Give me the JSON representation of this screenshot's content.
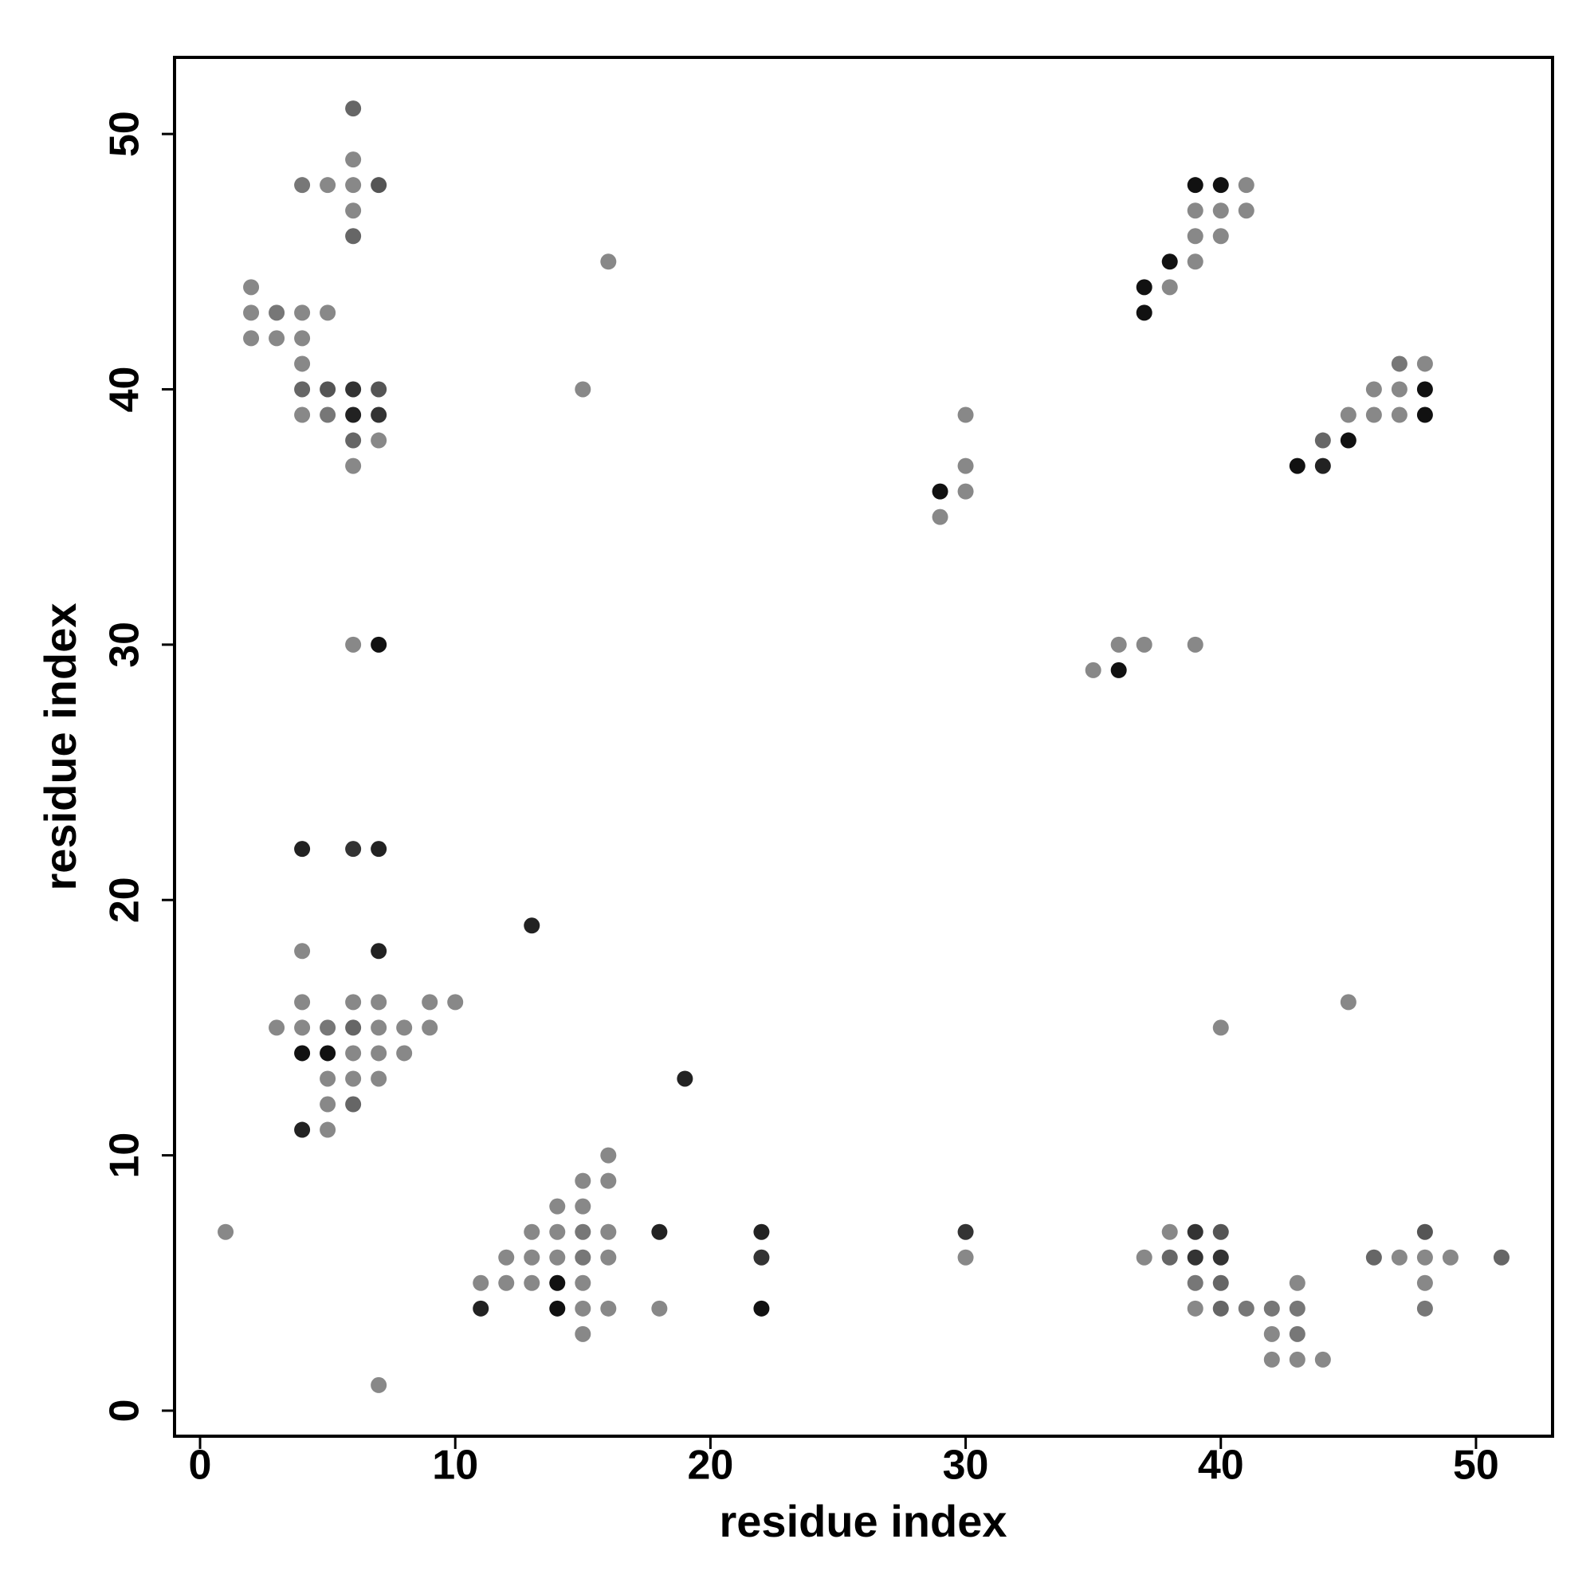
{
  "chart_data": {
    "type": "scatter",
    "x_label": "residue index",
    "y_label": "residue index",
    "xlim": [
      -1,
      53
    ],
    "ylim": [
      -1,
      53
    ],
    "xticks": [
      0,
      10,
      20,
      30,
      40,
      50
    ],
    "yticks": [
      0,
      10,
      20,
      30,
      40,
      50
    ],
    "x": [
      6,
      6,
      4,
      5,
      6,
      7,
      39,
      40,
      41,
      6,
      39,
      40,
      41,
      6,
      39,
      40,
      16,
      38,
      39,
      2,
      37,
      38,
      2,
      3,
      4,
      5,
      37,
      2,
      3,
      4,
      4,
      47,
      48,
      4,
      5,
      6,
      7,
      15,
      46,
      47,
      48,
      4,
      5,
      6,
      7,
      30,
      45,
      46,
      47,
      48,
      6,
      7,
      44,
      45,
      6,
      30,
      43,
      44,
      29,
      30,
      29,
      6,
      7,
      36,
      37,
      39,
      35,
      36,
      4,
      6,
      7,
      13,
      4,
      7,
      4,
      6,
      7,
      9,
      10,
      45,
      3,
      4,
      5,
      6,
      7,
      8,
      9,
      40,
      4,
      5,
      6,
      7,
      8,
      5,
      6,
      7,
      19,
      5,
      6,
      4,
      5,
      16,
      15,
      16,
      14,
      15,
      1,
      13,
      14,
      15,
      16,
      18,
      22,
      30,
      38,
      39,
      40,
      48,
      12,
      13,
      14,
      15,
      16,
      22,
      30,
      37,
      38,
      39,
      40,
      46,
      47,
      48,
      49,
      51,
      11,
      12,
      13,
      14,
      15,
      39,
      40,
      43,
      48,
      11,
      14,
      15,
      16,
      18,
      22,
      39,
      40,
      41,
      42,
      43,
      48,
      15,
      42,
      43,
      42,
      43,
      44,
      7
    ],
    "values": [
      51,
      49,
      48,
      48,
      48,
      48,
      48,
      48,
      48,
      47,
      47,
      47,
      47,
      46,
      46,
      46,
      45,
      45,
      45,
      44,
      44,
      44,
      43,
      43,
      43,
      43,
      43,
      42,
      42,
      42,
      41,
      41,
      41,
      40,
      40,
      40,
      40,
      40,
      40,
      40,
      40,
      39,
      39,
      39,
      39,
      39,
      39,
      39,
      39,
      39,
      38,
      38,
      38,
      38,
      37,
      37,
      37,
      37,
      36,
      36,
      35,
      30,
      30,
      30,
      30,
      30,
      29,
      29,
      22,
      22,
      22,
      19,
      18,
      18,
      16,
      16,
      16,
      16,
      16,
      16,
      15,
      15,
      15,
      15,
      15,
      15,
      15,
      15,
      14,
      14,
      14,
      14,
      14,
      13,
      13,
      13,
      13,
      12,
      12,
      11,
      11,
      10,
      9,
      9,
      8,
      8,
      7,
      7,
      7,
      7,
      7,
      7,
      7,
      7,
      7,
      7,
      7,
      7,
      6,
      6,
      6,
      6,
      6,
      6,
      6,
      6,
      6,
      6,
      6,
      6,
      6,
      6,
      6,
      6,
      5,
      5,
      5,
      5,
      5,
      5,
      5,
      5,
      5,
      4,
      4,
      4,
      4,
      4,
      4,
      4,
      4,
      4,
      4,
      4,
      4,
      3,
      3,
      3,
      2,
      2,
      2,
      1
    ],
    "colors": [
      "#666",
      "#888",
      "#777",
      "#888",
      "#888",
      "#555",
      "#111",
      "#111",
      "#888",
      "#888",
      "#888",
      "#888",
      "#888",
      "#666",
      "#888",
      "#888",
      "#888",
      "#111",
      "#888",
      "#888",
      "#111",
      "#888",
      "#888",
      "#777",
      "#888",
      "#888",
      "#111",
      "#888",
      "#888",
      "#888",
      "#888",
      "#777",
      "#888",
      "#666",
      "#555",
      "#333",
      "#555",
      "#888",
      "#888",
      "#888",
      "#111",
      "#888",
      "#777",
      "#222",
      "#333",
      "#888",
      "#888",
      "#888",
      "#888",
      "#111",
      "#666",
      "#888",
      "#666",
      "#111",
      "#888",
      "#888",
      "#111",
      "#222",
      "#111",
      "#888",
      "#888",
      "#888",
      "#111",
      "#888",
      "#888",
      "#888",
      "#888",
      "#111",
      "#222",
      "#333",
      "#222",
      "#222",
      "#888",
      "#222",
      "#888",
      "#888",
      "#888",
      "#888",
      "#888",
      "#888",
      "#888",
      "#888",
      "#777",
      "#666",
      "#888",
      "#888",
      "#888",
      "#888",
      "#111",
      "#111",
      "#888",
      "#888",
      "#888",
      "#888",
      "#888",
      "#888",
      "#222",
      "#888",
      "#666",
      "#222",
      "#888",
      "#888",
      "#888",
      "#888",
      "#888",
      "#888",
      "#888",
      "#888",
      "#888",
      "#777",
      "#888",
      "#222",
      "#222",
      "#333",
      "#888",
      "#333",
      "#555",
      "#555",
      "#888",
      "#888",
      "#888",
      "#777",
      "#888",
      "#333",
      "#888",
      "#888",
      "#666",
      "#333",
      "#333",
      "#666",
      "#888",
      "#888",
      "#888",
      "#666",
      "#888",
      "#888",
      "#888",
      "#111",
      "#888",
      "#777",
      "#666",
      "#888",
      "#888",
      "#222",
      "#111",
      "#888",
      "#888",
      "#888",
      "#111",
      "#888",
      "#666",
      "#777",
      "#777",
      "#777",
      "#777",
      "#888",
      "#888",
      "#777",
      "#888",
      "#888",
      "#888",
      "#888"
    ]
  }
}
